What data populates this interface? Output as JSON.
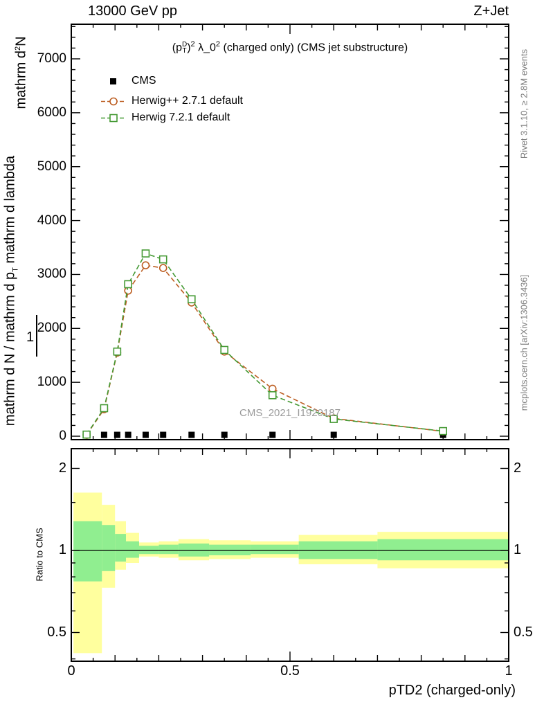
{
  "header": {
    "beam_energy": "13000 GeV pp",
    "process": "Z+Jet"
  },
  "plot_title": {
    "p_open": "(p",
    "sup_d": "D",
    "sub_t": "T",
    "p_close": ")",
    "sq1": "2",
    "lambda": " λ_0",
    "sq2": "2",
    "rest": " (charged only) (CMS jet substructure)"
  },
  "legend": {
    "items": [
      {
        "label": "CMS"
      },
      {
        "label": "Herwig++ 2.7.1 default"
      },
      {
        "label": "Herwig 7.2.1 default"
      }
    ]
  },
  "watermark": "CMS_2021_I1920187",
  "side_notes": {
    "rivet": "Rivet 3.1.10, ≥ 2.8M events",
    "mcplots": "mcplots.cern.ch [arXiv:1306.3436]"
  },
  "axes": {
    "x_title": "pTD2 (charged-only)",
    "x_tick_labels": [
      "0",
      "0.5",
      "1"
    ],
    "x_tick_values": [
      0,
      0.5,
      1
    ],
    "y_main_tick_labels": [
      "0",
      "1000",
      "2000",
      "3000",
      "4000",
      "5000",
      "6000",
      "7000"
    ],
    "y_main_tick_values": [
      0,
      1000,
      2000,
      3000,
      4000,
      5000,
      6000,
      7000
    ],
    "ratio_tick_labels": [
      "0.5",
      "1",
      "2"
    ],
    "ratio_tick_values": [
      0.5,
      1,
      2
    ],
    "ratio_axis_label": "Ratio to CMS",
    "y_label": {
      "numerator_d": "mathrm d",
      "numerator_sup": "2",
      "numerator_n": "N",
      "fraction": "mathrm d N / mathrm d p",
      "fraction_sub": "T",
      "fraction_tail": " mathrm d lambda",
      "one": "1"
    }
  },
  "chart_data": {
    "type": "line",
    "title": "(p_T^D)^2 lambda_0^2 (charged only) (CMS jet substructure)",
    "xlabel": "pTD2 (charged-only)",
    "ylabel": "mathrm d^2N / mathrm d p_T mathrm d lambda",
    "x_range": [
      0,
      1
    ],
    "y_range": [
      0,
      7640
    ],
    "ratio_range": [
      0.39,
      2.36
    ],
    "grid": false,
    "legend_position": "top-left",
    "series": [
      {
        "name": "CMS",
        "marker": "filled-square",
        "color": "#000000",
        "line": false,
        "x": [
          0.035,
          0.075,
          0.105,
          0.13,
          0.17,
          0.21,
          0.275,
          0.35,
          0.46,
          0.6,
          0.85
        ],
        "y": [
          25,
          25,
          25,
          25,
          25,
          25,
          25,
          25,
          25,
          25,
          25
        ]
      },
      {
        "name": "Herwig++ 2.7.1 default",
        "marker": "open-circle",
        "color": "#bc5d21",
        "line": true,
        "x": [
          0.035,
          0.075,
          0.105,
          0.13,
          0.17,
          0.21,
          0.275,
          0.35,
          0.46,
          0.6,
          0.85
        ],
        "y": [
          25,
          500,
          1550,
          2700,
          3170,
          3120,
          2480,
          1570,
          880,
          330,
          90
        ]
      },
      {
        "name": "Herwig 7.2.1 default",
        "marker": "open-square",
        "color": "#449933",
        "line": true,
        "x": [
          0.035,
          0.075,
          0.105,
          0.13,
          0.17,
          0.21,
          0.275,
          0.35,
          0.46,
          0.6,
          0.85
        ],
        "y": [
          30,
          520,
          1570,
          2820,
          3390,
          3280,
          2540,
          1600,
          760,
          320,
          95
        ]
      }
    ],
    "ratio_reference": 1,
    "band_colors": {
      "outer": "#ffff9e",
      "inner": "#90ee90"
    },
    "ratio_minor_ticks": [
      0.4,
      0.6,
      0.7,
      0.8,
      0.9,
      1.5
    ],
    "ratio_bands": [
      {
        "x0": 0.005,
        "x1": 0.07,
        "ylo": 0.42,
        "yhi": 1.63,
        "glo": 0.77,
        "ghi": 1.28
      },
      {
        "x0": 0.07,
        "x1": 0.1,
        "ylo": 0.73,
        "yhi": 1.47,
        "glo": 0.84,
        "ghi": 1.24
      },
      {
        "x0": 0.1,
        "x1": 0.125,
        "ylo": 0.85,
        "yhi": 1.28,
        "glo": 0.91,
        "ghi": 1.15
      },
      {
        "x0": 0.125,
        "x1": 0.155,
        "ylo": 0.9,
        "yhi": 1.16,
        "glo": 0.94,
        "ghi": 1.08
      },
      {
        "x0": 0.155,
        "x1": 0.2,
        "ylo": 0.95,
        "yhi": 1.07,
        "glo": 0.97,
        "ghi": 1.04
      },
      {
        "x0": 0.2,
        "x1": 0.245,
        "ylo": 0.94,
        "yhi": 1.08,
        "glo": 0.97,
        "ghi": 1.05
      },
      {
        "x0": 0.245,
        "x1": 0.315,
        "ylo": 0.92,
        "yhi": 1.1,
        "glo": 0.95,
        "ghi": 1.06
      },
      {
        "x0": 0.315,
        "x1": 0.41,
        "ylo": 0.93,
        "yhi": 1.09,
        "glo": 0.96,
        "ghi": 1.05
      },
      {
        "x0": 0.41,
        "x1": 0.52,
        "ylo": 0.94,
        "yhi": 1.08,
        "glo": 0.97,
        "ghi": 1.05
      },
      {
        "x0": 0.52,
        "x1": 0.7,
        "ylo": 0.89,
        "yhi": 1.14,
        "glo": 0.93,
        "ghi": 1.08
      },
      {
        "x0": 0.7,
        "x1": 1.0,
        "ylo": 0.86,
        "yhi": 1.17,
        "glo": 0.92,
        "ghi": 1.1
      }
    ]
  }
}
